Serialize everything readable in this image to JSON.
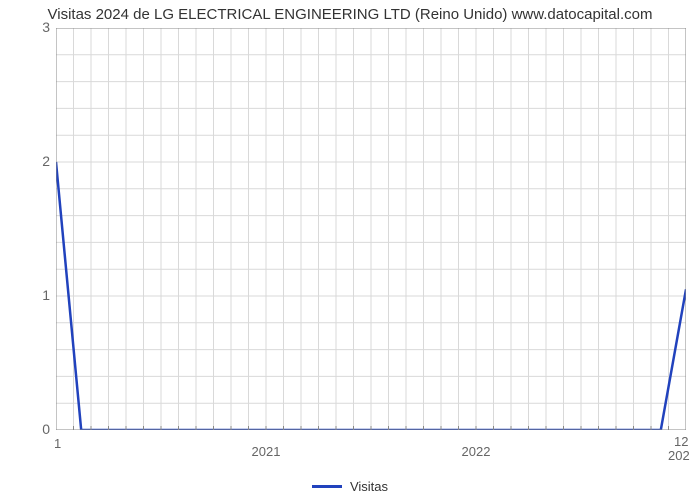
{
  "chart": {
    "type": "line",
    "title": "Visitas 2024 de LG ELECTRICAL ENGINEERING LTD (Reino Unido) www.datocapital.com",
    "title_fontsize": 15,
    "title_color": "#333333",
    "background_color": "#ffffff",
    "plot_border_color": "#888888",
    "plot_border_width": 1,
    "grid": {
      "show": true,
      "color": "#d9d9d9",
      "width": 1
    },
    "legend": {
      "label": "Visitas",
      "color": "#2142bd",
      "line_width": 3,
      "position": "bottom-center",
      "fontsize": 13
    },
    "y_axis": {
      "lim": [
        0,
        3
      ],
      "tick_step": 1,
      "ticks": [
        0,
        1,
        2,
        3
      ],
      "label_fontsize": 14,
      "label_color": "#666666",
      "minor_gridlines_between": 4
    },
    "x_axis": {
      "lim": [
        2020,
        2023
      ],
      "major_ticks": [
        2021,
        2022
      ],
      "minor_tick_count_per_major": 12,
      "left_label": "1",
      "right_labels": [
        "12",
        "202"
      ],
      "label_fontsize": 13,
      "label_color": "#666666",
      "minor_tick_color": "#888888",
      "minor_tick_length": 4
    },
    "series": {
      "color": "#2142bd",
      "line_width": 2.5,
      "points": [
        {
          "x": 2020.0,
          "y": 2.0
        },
        {
          "x": 2020.12,
          "y": 0.0
        },
        {
          "x": 2022.88,
          "y": 0.0
        },
        {
          "x": 2023.0,
          "y": 1.05
        }
      ]
    }
  }
}
